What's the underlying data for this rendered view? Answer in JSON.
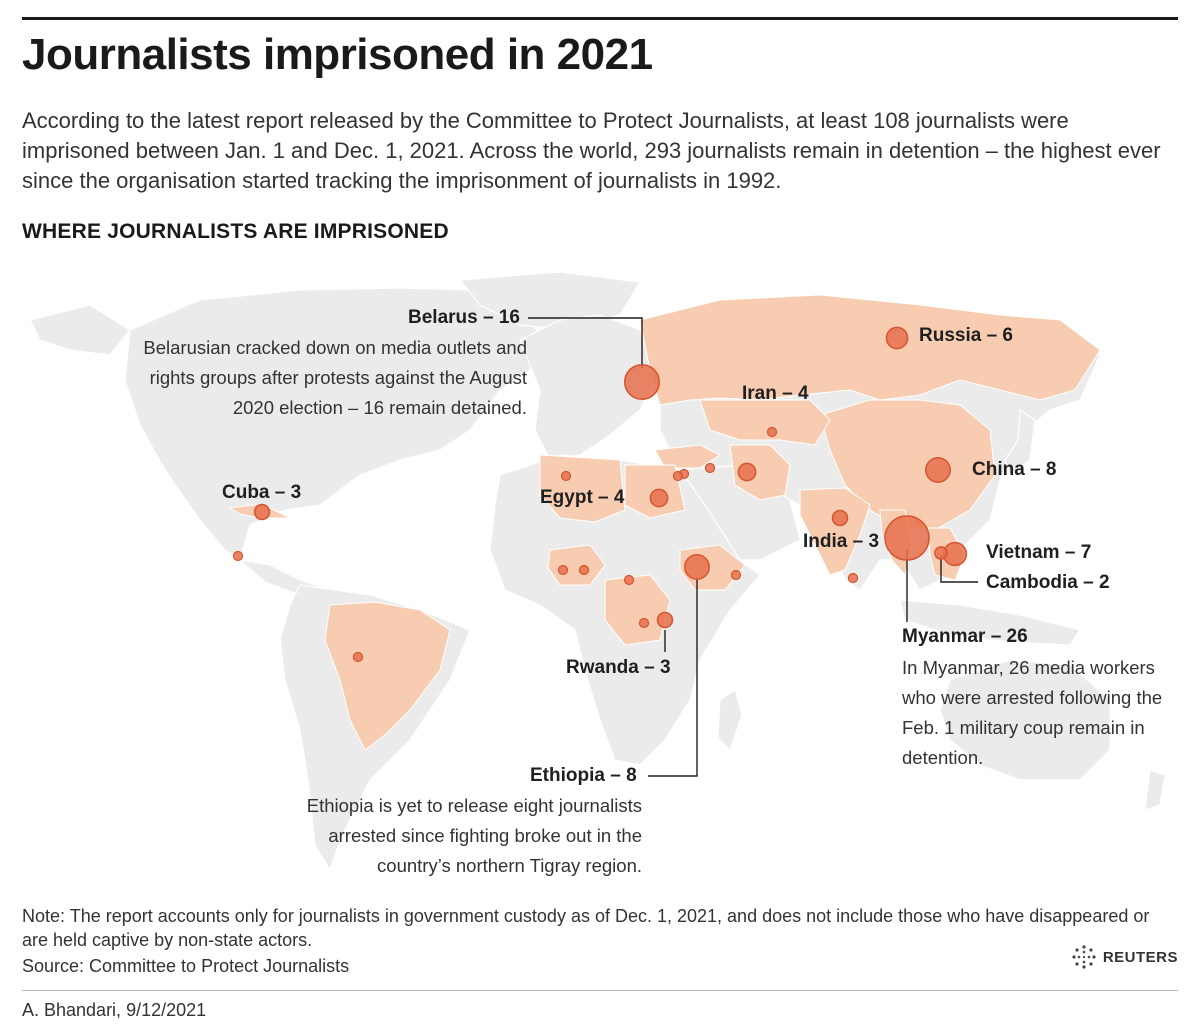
{
  "header": {
    "title": "Journalists imprisoned in 2021",
    "intro": "According to the latest report released by the Committee to Protect Journalists, at least 108 journalists were imprisoned between Jan. 1 and Dec. 1, 2021. Across the world, 293 journalists remain in detention  – the highest ever since the organisation started tracking the imprisonment of journalists in 1992.",
    "section_title": "WHERE JOURNALISTS ARE IMPRISONED"
  },
  "map": {
    "land_color": "#ebebeb",
    "highlight_color": "#f7ccb0",
    "bubble_color": "#e8704d",
    "bubble_stroke": "#d4552f",
    "labeled_countries": [
      {
        "name": "Belarus",
        "label": "Belarus – 16",
        "count": 16
      },
      {
        "name": "Russia",
        "label": "Russia – 6",
        "count": 6
      },
      {
        "name": "Iran",
        "label": "Iran – 4",
        "count": 4
      },
      {
        "name": "China",
        "label": "China – 8",
        "count": 8
      },
      {
        "name": "Cuba",
        "label": "Cuba – 3",
        "count": 3
      },
      {
        "name": "Egypt",
        "label": "Egypt – 4",
        "count": 4
      },
      {
        "name": "India",
        "label": "India – 3",
        "count": 3
      },
      {
        "name": "Vietnam",
        "label": "Vietnam – 7",
        "count": 7
      },
      {
        "name": "Cambodia",
        "label": "Cambodia – 2",
        "count": 2
      },
      {
        "name": "Myanmar",
        "label": "Myanmar – 26",
        "count": 26
      },
      {
        "name": "Rwanda",
        "label": "Rwanda – 3",
        "count": 3
      },
      {
        "name": "Ethiopia",
        "label": "Ethiopia – 8",
        "count": 8
      }
    ],
    "annotations": {
      "belarus": "Belarusian cracked down on media outlets and rights groups after protests against the August 2020 election – 16 remain detained.",
      "myanmar": "In Myanmar, 26 media workers who were arrested following the Feb. 1 military coup remain in detention.",
      "ethiopia": "Ethiopia is yet to release eight journalists arrested since fighting broke out in the country’s northern Tigray region."
    }
  },
  "footer": {
    "note": "Note: The report accounts only for journalists in government custody as of Dec. 1, 2021, and does not include those who have disappeared or are held captive by non-state actors.",
    "source": "Source: Committee to Protect Journalists",
    "logo_text": "REUTERS",
    "byline": "A. Bhandari, 9/12/2021"
  }
}
